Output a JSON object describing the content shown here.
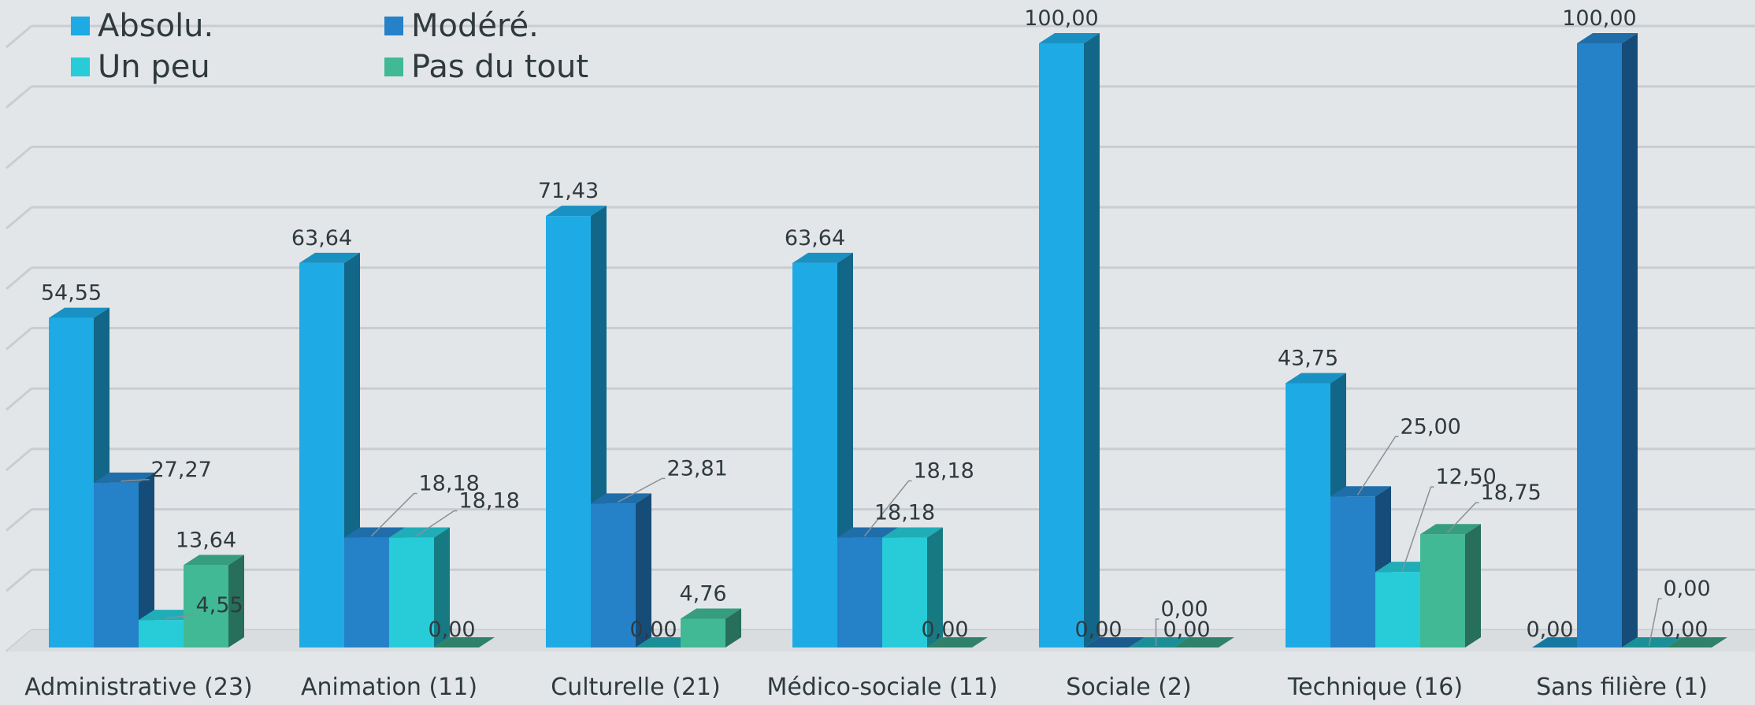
{
  "chart_data": {
    "type": "bar",
    "categories": [
      "Administrative (23)",
      "Animation (11)",
      "Culturelle (21)",
      "Médico-sociale (11)",
      "Sociale (2)",
      "Technique (16)",
      "Sans filière (1)"
    ],
    "series": [
      {
        "name": "Absolu.",
        "color": "#1eabe5",
        "values": [
          54.55,
          63.64,
          71.43,
          63.64,
          100.0,
          43.75,
          0.0
        ]
      },
      {
        "name": "Modéré.",
        "color": "#2581c8",
        "values": [
          27.27,
          18.18,
          23.81,
          18.18,
          0.0,
          25.0,
          100.0
        ]
      },
      {
        "name": "Un peu",
        "color": "#27ccd8",
        "values": [
          4.55,
          18.18,
          0.0,
          18.18,
          0.0,
          12.5,
          0.0
        ]
      },
      {
        "name": "Pas du tout",
        "color": "#41b995",
        "values": [
          13.64,
          0.0,
          4.76,
          0.0,
          0.0,
          18.75,
          0.0
        ]
      }
    ],
    "value_labels": [
      [
        "54,55",
        "27,27",
        "4,55",
        "13,64"
      ],
      [
        "63,64",
        "18,18",
        "18,18",
        "0,00"
      ],
      [
        "71,43",
        "23,81",
        "0,00",
        "4,76"
      ],
      [
        "63,64",
        "18,18",
        "18,18",
        "0,00"
      ],
      [
        "100,00",
        "0,00",
        "0,00",
        "0,00"
      ],
      [
        "43,75",
        "25,00",
        "12,50",
        "18,75"
      ],
      [
        "0,00",
        "100,00",
        "0,00",
        "0,00"
      ]
    ],
    "ylim": [
      0,
      100
    ],
    "grid": true,
    "legend_position": "top-left",
    "style": "3d-clustered-column"
  }
}
